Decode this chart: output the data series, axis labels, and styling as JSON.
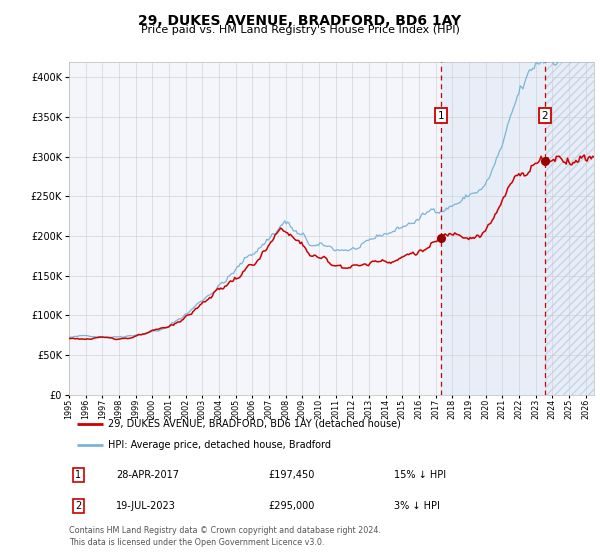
{
  "title": "29, DUKES AVENUE, BRADFORD, BD6 1AY",
  "subtitle": "Price paid vs. HM Land Registry's House Price Index (HPI)",
  "legend_line1": "29, DUKES AVENUE, BRADFORD, BD6 1AY (detached house)",
  "legend_line2": "HPI: Average price, detached house, Bradford",
  "annotation1_date": "28-APR-2017",
  "annotation1_price": "£197,450",
  "annotation1_pct": "15% ↓ HPI",
  "annotation1_year": 2017.32,
  "annotation1_value": 197450,
  "annotation2_date": "19-JUL-2023",
  "annotation2_price": "£295,000",
  "annotation2_pct": "3% ↓ HPI",
  "annotation2_year": 2023.54,
  "annotation2_value": 295000,
  "hpi_color": "#7ab4d8",
  "price_color": "#cc0000",
  "span_color": "#e8eef8",
  "hatch_color": "#c8d4e8",
  "grid_color": "#cccccc",
  "plot_bg": "#f4f6fb",
  "ylim_min": 0,
  "ylim_max": 420000,
  "xmin": 1995,
  "xmax": 2026.5,
  "footnote": "Contains HM Land Registry data © Crown copyright and database right 2024.\nThis data is licensed under the Open Government Licence v3.0."
}
